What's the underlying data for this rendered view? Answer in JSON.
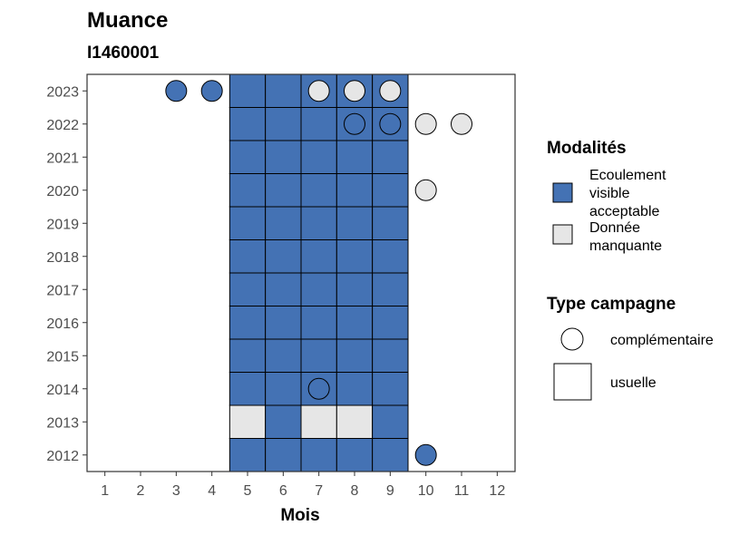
{
  "chart_data": {
    "type": "heatmap",
    "title": "Muance",
    "subtitle": "I1460001",
    "xlabel": "Mois",
    "ylabel": "",
    "x_ticks": [
      1,
      2,
      3,
      4,
      5,
      6,
      7,
      8,
      9,
      10,
      11,
      12
    ],
    "y_ticks": [
      2012,
      2013,
      2014,
      2015,
      2016,
      2017,
      2018,
      2019,
      2020,
      2021,
      2022,
      2023
    ],
    "xlim": [
      0.5,
      12.5
    ],
    "ylim": [
      2011.5,
      2023.5
    ],
    "grid": false,
    "legend_position": "right",
    "colors": {
      "Ecoulement visible acceptable": "#4472b4",
      "Donnée manquante": "#e6e6e6"
    },
    "legend": {
      "modalites": {
        "title": "Modalités",
        "items": [
          {
            "key": "Ecoulement visible acceptable",
            "label_lines": [
              "Ecoulement",
              "visible",
              "acceptable"
            ]
          },
          {
            "key": "Donnée manquante",
            "label_lines": [
              "Donnée",
              "manquante"
            ]
          }
        ]
      },
      "type_campagne": {
        "title": "Type campagne",
        "items": [
          {
            "shape": "circle",
            "label": "complémentaire"
          },
          {
            "shape": "square",
            "label": "usuelle"
          }
        ]
      }
    },
    "points": [
      {
        "year": 2023,
        "month": 3,
        "type": "complémentaire",
        "modalite": "Ecoulement visible acceptable"
      },
      {
        "year": 2023,
        "month": 4,
        "type": "complémentaire",
        "modalite": "Ecoulement visible acceptable"
      },
      {
        "year": 2023,
        "month": 5,
        "type": "usuelle",
        "modalite": "Ecoulement visible acceptable"
      },
      {
        "year": 2023,
        "month": 6,
        "type": "usuelle",
        "modalite": "Ecoulement visible acceptable"
      },
      {
        "year": 2023,
        "month": 7,
        "type": "usuelle",
        "modalite": "Ecoulement visible acceptable"
      },
      {
        "year": 2023,
        "month": 8,
        "type": "usuelle",
        "modalite": "Ecoulement visible acceptable"
      },
      {
        "year": 2023,
        "month": 9,
        "type": "usuelle",
        "modalite": "Ecoulement visible acceptable"
      },
      {
        "year": 2023,
        "month": 7,
        "type": "complémentaire",
        "modalite": "Donnée manquante"
      },
      {
        "year": 2023,
        "month": 8,
        "type": "complémentaire",
        "modalite": "Donnée manquante"
      },
      {
        "year": 2023,
        "month": 9,
        "type": "complémentaire",
        "modalite": "Donnée manquante"
      },
      {
        "year": 2022,
        "month": 5,
        "type": "usuelle",
        "modalite": "Ecoulement visible acceptable"
      },
      {
        "year": 2022,
        "month": 6,
        "type": "usuelle",
        "modalite": "Ecoulement visible acceptable"
      },
      {
        "year": 2022,
        "month": 7,
        "type": "usuelle",
        "modalite": "Ecoulement visible acceptable"
      },
      {
        "year": 2022,
        "month": 8,
        "type": "usuelle",
        "modalite": "Ecoulement visible acceptable"
      },
      {
        "year": 2022,
        "month": 9,
        "type": "usuelle",
        "modalite": "Ecoulement visible acceptable"
      },
      {
        "year": 2022,
        "month": 8,
        "type": "complémentaire",
        "modalite": "Ecoulement visible acceptable"
      },
      {
        "year": 2022,
        "month": 9,
        "type": "complémentaire",
        "modalite": "Ecoulement visible acceptable"
      },
      {
        "year": 2022,
        "month": 10,
        "type": "complémentaire",
        "modalite": "Donnée manquante"
      },
      {
        "year": 2022,
        "month": 11,
        "type": "complémentaire",
        "modalite": "Donnée manquante"
      },
      {
        "year": 2021,
        "month": 5,
        "type": "usuelle",
        "modalite": "Ecoulement visible acceptable"
      },
      {
        "year": 2021,
        "month": 6,
        "type": "usuelle",
        "modalite": "Ecoulement visible acceptable"
      },
      {
        "year": 2021,
        "month": 7,
        "type": "usuelle",
        "modalite": "Ecoulement visible acceptable"
      },
      {
        "year": 2021,
        "month": 8,
        "type": "usuelle",
        "modalite": "Ecoulement visible acceptable"
      },
      {
        "year": 2021,
        "month": 9,
        "type": "usuelle",
        "modalite": "Ecoulement visible acceptable"
      },
      {
        "year": 2020,
        "month": 5,
        "type": "usuelle",
        "modalite": "Ecoulement visible acceptable"
      },
      {
        "year": 2020,
        "month": 6,
        "type": "usuelle",
        "modalite": "Ecoulement visible acceptable"
      },
      {
        "year": 2020,
        "month": 7,
        "type": "usuelle",
        "modalite": "Ecoulement visible acceptable"
      },
      {
        "year": 2020,
        "month": 8,
        "type": "usuelle",
        "modalite": "Ecoulement visible acceptable"
      },
      {
        "year": 2020,
        "month": 9,
        "type": "usuelle",
        "modalite": "Ecoulement visible acceptable"
      },
      {
        "year": 2020,
        "month": 10,
        "type": "complémentaire",
        "modalite": "Donnée manquante"
      },
      {
        "year": 2019,
        "month": 5,
        "type": "usuelle",
        "modalite": "Ecoulement visible acceptable"
      },
      {
        "year": 2019,
        "month": 6,
        "type": "usuelle",
        "modalite": "Ecoulement visible acceptable"
      },
      {
        "year": 2019,
        "month": 7,
        "type": "usuelle",
        "modalite": "Ecoulement visible acceptable"
      },
      {
        "year": 2019,
        "month": 8,
        "type": "usuelle",
        "modalite": "Ecoulement visible acceptable"
      },
      {
        "year": 2019,
        "month": 9,
        "type": "usuelle",
        "modalite": "Ecoulement visible acceptable"
      },
      {
        "year": 2018,
        "month": 5,
        "type": "usuelle",
        "modalite": "Ecoulement visible acceptable"
      },
      {
        "year": 2018,
        "month": 6,
        "type": "usuelle",
        "modalite": "Ecoulement visible acceptable"
      },
      {
        "year": 2018,
        "month": 7,
        "type": "usuelle",
        "modalite": "Ecoulement visible acceptable"
      },
      {
        "year": 2018,
        "month": 8,
        "type": "usuelle",
        "modalite": "Ecoulement visible acceptable"
      },
      {
        "year": 2018,
        "month": 9,
        "type": "usuelle",
        "modalite": "Ecoulement visible acceptable"
      },
      {
        "year": 2017,
        "month": 5,
        "type": "usuelle",
        "modalite": "Ecoulement visible acceptable"
      },
      {
        "year": 2017,
        "month": 6,
        "type": "usuelle",
        "modalite": "Ecoulement visible acceptable"
      },
      {
        "year": 2017,
        "month": 7,
        "type": "usuelle",
        "modalite": "Ecoulement visible acceptable"
      },
      {
        "year": 2017,
        "month": 8,
        "type": "usuelle",
        "modalite": "Ecoulement visible acceptable"
      },
      {
        "year": 2017,
        "month": 9,
        "type": "usuelle",
        "modalite": "Ecoulement visible acceptable"
      },
      {
        "year": 2016,
        "month": 5,
        "type": "usuelle",
        "modalite": "Ecoulement visible acceptable"
      },
      {
        "year": 2016,
        "month": 6,
        "type": "usuelle",
        "modalite": "Ecoulement visible acceptable"
      },
      {
        "year": 2016,
        "month": 7,
        "type": "usuelle",
        "modalite": "Ecoulement visible acceptable"
      },
      {
        "year": 2016,
        "month": 8,
        "type": "usuelle",
        "modalite": "Ecoulement visible acceptable"
      },
      {
        "year": 2016,
        "month": 9,
        "type": "usuelle",
        "modalite": "Ecoulement visible acceptable"
      },
      {
        "year": 2015,
        "month": 5,
        "type": "usuelle",
        "modalite": "Ecoulement visible acceptable"
      },
      {
        "year": 2015,
        "month": 6,
        "type": "usuelle",
        "modalite": "Ecoulement visible acceptable"
      },
      {
        "year": 2015,
        "month": 7,
        "type": "usuelle",
        "modalite": "Ecoulement visible acceptable"
      },
      {
        "year": 2015,
        "month": 8,
        "type": "usuelle",
        "modalite": "Ecoulement visible acceptable"
      },
      {
        "year": 2015,
        "month": 9,
        "type": "usuelle",
        "modalite": "Ecoulement visible acceptable"
      },
      {
        "year": 2014,
        "month": 5,
        "type": "usuelle",
        "modalite": "Ecoulement visible acceptable"
      },
      {
        "year": 2014,
        "month": 6,
        "type": "usuelle",
        "modalite": "Ecoulement visible acceptable"
      },
      {
        "year": 2014,
        "month": 7,
        "type": "usuelle",
        "modalite": "Ecoulement visible acceptable"
      },
      {
        "year": 2014,
        "month": 8,
        "type": "usuelle",
        "modalite": "Ecoulement visible acceptable"
      },
      {
        "year": 2014,
        "month": 9,
        "type": "usuelle",
        "modalite": "Ecoulement visible acceptable"
      },
      {
        "year": 2014,
        "month": 7,
        "type": "complémentaire",
        "modalite": "Ecoulement visible acceptable"
      },
      {
        "year": 2013,
        "month": 5,
        "type": "usuelle",
        "modalite": "Donnée manquante"
      },
      {
        "year": 2013,
        "month": 6,
        "type": "usuelle",
        "modalite": "Ecoulement visible acceptable"
      },
      {
        "year": 2013,
        "month": 7,
        "type": "usuelle",
        "modalite": "Donnée manquante"
      },
      {
        "year": 2013,
        "month": 8,
        "type": "usuelle",
        "modalite": "Donnée manquante"
      },
      {
        "year": 2013,
        "month": 9,
        "type": "usuelle",
        "modalite": "Ecoulement visible acceptable"
      },
      {
        "year": 2012,
        "month": 5,
        "type": "usuelle",
        "modalite": "Ecoulement visible acceptable"
      },
      {
        "year": 2012,
        "month": 6,
        "type": "usuelle",
        "modalite": "Ecoulement visible acceptable"
      },
      {
        "year": 2012,
        "month": 7,
        "type": "usuelle",
        "modalite": "Ecoulement visible acceptable"
      },
      {
        "year": 2012,
        "month": 8,
        "type": "usuelle",
        "modalite": "Ecoulement visible acceptable"
      },
      {
        "year": 2012,
        "month": 9,
        "type": "usuelle",
        "modalite": "Ecoulement visible acceptable"
      },
      {
        "year": 2012,
        "month": 10,
        "type": "complémentaire",
        "modalite": "Ecoulement visible acceptable"
      }
    ]
  }
}
